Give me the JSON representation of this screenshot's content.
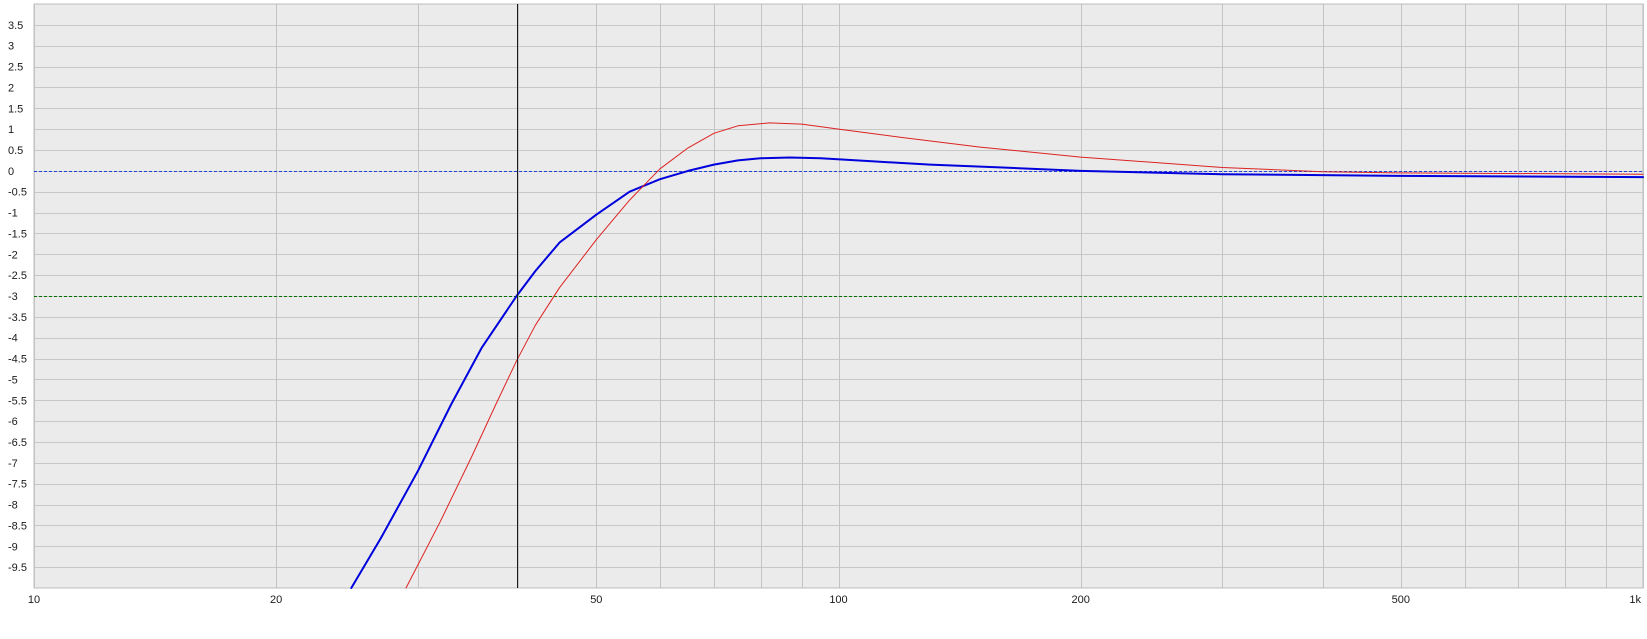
{
  "chart_data": {
    "type": "line",
    "title": "",
    "xlabel": "",
    "ylabel": "",
    "x_scale": "log",
    "xlim": [
      10,
      1000
    ],
    "ylim": [
      -10,
      4
    ],
    "grid": true,
    "x_tick_labels": [
      {
        "value": 10,
        "label": "10"
      },
      {
        "value": 20,
        "label": "20"
      },
      {
        "value": 50,
        "label": "50"
      },
      {
        "value": 100,
        "label": "100"
      },
      {
        "value": 200,
        "label": "200"
      },
      {
        "value": 500,
        "label": "500"
      },
      {
        "value": 1000,
        "label": "1k"
      }
    ],
    "x_minor_gridlines": [
      30,
      40,
      60,
      70,
      80,
      90,
      300,
      400,
      600,
      700,
      800,
      900
    ],
    "y_tick_labels": [
      {
        "value": 3.5,
        "label": "3.5"
      },
      {
        "value": 3,
        "label": "3"
      },
      {
        "value": 2.5,
        "label": "2.5"
      },
      {
        "value": 2,
        "label": "2"
      },
      {
        "value": 1.5,
        "label": "1.5"
      },
      {
        "value": 1,
        "label": "1"
      },
      {
        "value": 0.5,
        "label": "0.5"
      },
      {
        "value": 0,
        "label": "0"
      },
      {
        "value": -0.5,
        "label": "-0.5"
      },
      {
        "value": -1,
        "label": "-1"
      },
      {
        "value": -1.5,
        "label": "-1.5"
      },
      {
        "value": -2,
        "label": "-2"
      },
      {
        "value": -2.5,
        "label": "-2.5"
      },
      {
        "value": -3,
        "label": "-3"
      },
      {
        "value": -3.5,
        "label": "-3.5"
      },
      {
        "value": -4,
        "label": "-4"
      },
      {
        "value": -4.5,
        "label": "-4.5"
      },
      {
        "value": -5,
        "label": "-5"
      },
      {
        "value": -5.5,
        "label": "-5.5"
      },
      {
        "value": -6,
        "label": "-6"
      },
      {
        "value": -6.5,
        "label": "-6.5"
      },
      {
        "value": -7,
        "label": "-7"
      },
      {
        "value": -7.5,
        "label": "-7.5"
      },
      {
        "value": -8,
        "label": "-8"
      },
      {
        "value": -8.5,
        "label": "-8.5"
      },
      {
        "value": -9,
        "label": "-9"
      },
      {
        "value": -9.5,
        "label": "-9.5"
      }
    ],
    "reference_lines": [
      {
        "y": 0,
        "color": "#1f3fd9",
        "style": "dashed"
      },
      {
        "y": -3,
        "color": "#007000",
        "style": "dashed"
      }
    ],
    "cursor_x": 39.8,
    "series": [
      {
        "color": "#0000dd",
        "stroke": "thick",
        "points": [
          [
            24.8,
            -10
          ],
          [
            27,
            -8.8
          ],
          [
            30,
            -7.2
          ],
          [
            33,
            -5.6
          ],
          [
            36,
            -4.25
          ],
          [
            39.8,
            -3.0
          ],
          [
            42,
            -2.4
          ],
          [
            45,
            -1.72
          ],
          [
            50,
            -1.05
          ],
          [
            55,
            -0.5
          ],
          [
            60,
            -0.2
          ],
          [
            65,
            0.0
          ],
          [
            70,
            0.15
          ],
          [
            75,
            0.25
          ],
          [
            80,
            0.3
          ],
          [
            87,
            0.32
          ],
          [
            95,
            0.3
          ],
          [
            110,
            0.23
          ],
          [
            130,
            0.15
          ],
          [
            160,
            0.08
          ],
          [
            200,
            0.0
          ],
          [
            300,
            -0.08
          ],
          [
            500,
            -0.12
          ],
          [
            1000,
            -0.15
          ]
        ]
      },
      {
        "color": "#dd2222",
        "stroke": "thin",
        "points": [
          [
            29,
            -10
          ],
          [
            32,
            -8.4
          ],
          [
            35,
            -6.85
          ],
          [
            37.5,
            -5.6
          ],
          [
            39.8,
            -4.55
          ],
          [
            42,
            -3.7
          ],
          [
            45,
            -2.8
          ],
          [
            50,
            -1.65
          ],
          [
            55,
            -0.7
          ],
          [
            60,
            0.05
          ],
          [
            65,
            0.55
          ],
          [
            70,
            0.9
          ],
          [
            75,
            1.08
          ],
          [
            82,
            1.15
          ],
          [
            90,
            1.12
          ],
          [
            100,
            1.0
          ],
          [
            120,
            0.8
          ],
          [
            150,
            0.57
          ],
          [
            200,
            0.33
          ],
          [
            300,
            0.08
          ],
          [
            400,
            -0.02
          ],
          [
            500,
            -0.05
          ],
          [
            1000,
            -0.08
          ]
        ]
      }
    ]
  }
}
